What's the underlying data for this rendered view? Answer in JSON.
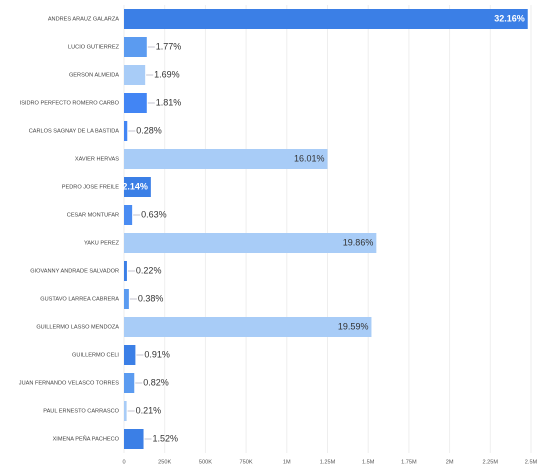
{
  "chart_data": {
    "type": "hbar",
    "categories": [
      "ANDRES ARAUZ GALARZA",
      "LUCIO GUTIERREZ",
      "GERSON ALMEIDA",
      "ISIDRO PERFECTO ROMERO CARBO",
      "CARLOS SAGNAY DE LA BASTIDA",
      "XAVIER HERVAS",
      "PEDRO JOSE FREILE",
      "CESAR MONTUFAR",
      "YAKU PEREZ",
      "GIOVANNY ANDRADE SALVADOR",
      "GUSTAVO LARREA CABRERA",
      "GUILLERMO LASSO MENDOZA",
      "GUILLERMO CELI",
      "JUAN FERNANDO VELASCO TORRES",
      "PAUL ERNESTO CARRASCO",
      "XIMENA PEÑA PACHECO"
    ],
    "values": [
      2480000,
      140000,
      130000,
      140000,
      20000,
      1250000,
      165000,
      50000,
      1550000,
      18000,
      30000,
      1520000,
      70000,
      63000,
      16000,
      120000
    ],
    "value_labels": [
      "32.16%",
      "1.77%",
      "1.69%",
      "1.81%",
      "0.28%",
      "16.01%",
      "2.14%",
      "0.63%",
      "19.86%",
      "0.22%",
      "0.38%",
      "19.59%",
      "0.91%",
      "0.82%",
      "0.21%",
      "1.52%"
    ],
    "colors": [
      "#3b7fe6",
      "#5b9bf0",
      "#a8ccf7",
      "#4285f4",
      "#4285f4",
      "#a8ccf7",
      "#3b7fe6",
      "#4a8cf2",
      "#a8ccf7",
      "#3b7fe6",
      "#5b9bf0",
      "#a8ccf7",
      "#3b7fe6",
      "#5b9bf0",
      "#a8ccf7",
      "#3b7fe6"
    ],
    "xlim": [
      0,
      2500000
    ],
    "xticks": [
      0,
      {
        "value": 250000,
        "label": "250K"
      },
      {
        "value": 500000,
        "label": "500K"
      },
      {
        "value": 750000,
        "label": "750K"
      },
      {
        "value": 1000000,
        "label": "1M"
      },
      {
        "value": 1250000,
        "label": "1.25M"
      },
      {
        "value": 1500000,
        "label": "1.5M"
      },
      {
        "value": 1750000,
        "label": "1.75M"
      },
      {
        "value": 2000000,
        "label": "2M"
      },
      {
        "value": 2250000,
        "label": "2.25M"
      },
      {
        "value": 2500000,
        "label": "2.5M"
      }
    ],
    "grid": true
  }
}
